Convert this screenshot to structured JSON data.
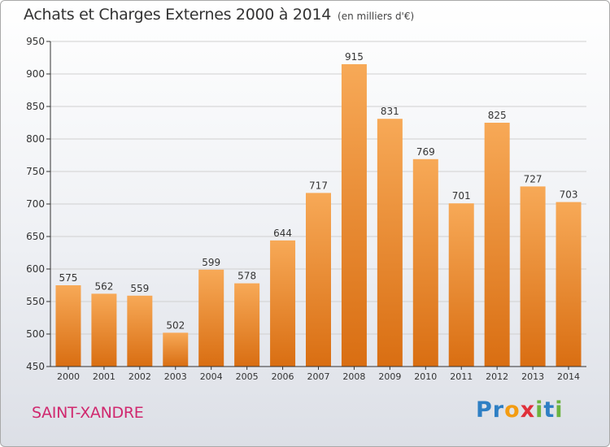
{
  "title": "Achats et Charges Externes 2000 à 2014",
  "subtitle": "(en milliers d'€)",
  "commune": "SAINT-XANDRE",
  "logo": {
    "text": "Proxiti",
    "letters": [
      {
        "ch": "P",
        "color": "#2e7fc4"
      },
      {
        "ch": "r",
        "color": "#2e7fc4"
      },
      {
        "ch": "o",
        "color": "#f39c12"
      },
      {
        "ch": "x",
        "color": "#e0303a"
      },
      {
        "ch": "i",
        "color": "#6cb33f"
      },
      {
        "ch": "t",
        "color": "#2e7fc4"
      },
      {
        "ch": "i",
        "color": "#6cb33f"
      }
    ]
  },
  "colors": {
    "bar_top": "#f7a957",
    "bar_bottom": "#d96e12",
    "grid": "#d0d0d0",
    "axis": "#333333",
    "commune": "#d0286e"
  },
  "chart_data": {
    "type": "bar",
    "title": "Achats et Charges Externes 2000 à 2014",
    "subtitle": "(en milliers d'€)",
    "categories": [
      "2000",
      "2001",
      "2002",
      "2003",
      "2004",
      "2005",
      "2006",
      "2007",
      "2008",
      "2009",
      "2010",
      "2011",
      "2012",
      "2013",
      "2014"
    ],
    "values": [
      575,
      562,
      559,
      502,
      599,
      578,
      644,
      717,
      915,
      831,
      769,
      701,
      825,
      727,
      703
    ],
    "ylim": [
      450,
      950
    ],
    "yticks": [
      450,
      500,
      550,
      600,
      650,
      700,
      750,
      800,
      850,
      900,
      950
    ],
    "grid": true,
    "data_labels": true
  }
}
